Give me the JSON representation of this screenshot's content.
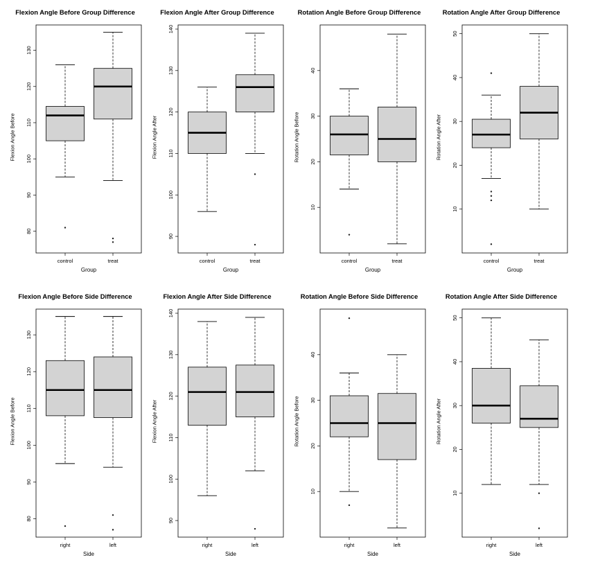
{
  "chart_data": [
    {
      "type": "box",
      "title": "Flexion Angle Before Group Difference",
      "xlabel": "Group",
      "ylabel": "Flexion Angle Before",
      "ylim": [
        74,
        137
      ],
      "yticks": [
        80,
        90,
        100,
        110,
        120,
        130
      ],
      "categories": [
        "control",
        "treat"
      ],
      "boxes": [
        {
          "whisker_low": 95,
          "q1": 105,
          "median": 112,
          "q3": 114.5,
          "whisker_high": 126,
          "outliers": [
            81
          ]
        },
        {
          "whisker_low": 94,
          "q1": 111,
          "median": 120,
          "q3": 125,
          "whisker_high": 135,
          "outliers": [
            78,
            77
          ]
        }
      ]
    },
    {
      "type": "box",
      "title": "Flexion Angle After Group Difference",
      "xlabel": "Group",
      "ylabel": "Flexion Angle After",
      "ylim": [
        86,
        141
      ],
      "yticks": [
        90,
        100,
        110,
        120,
        130,
        140
      ],
      "categories": [
        "control",
        "treat"
      ],
      "boxes": [
        {
          "whisker_low": 96,
          "q1": 110,
          "median": 115,
          "q3": 120,
          "whisker_high": 126,
          "outliers": []
        },
        {
          "whisker_low": 110,
          "q1": 120,
          "median": 126,
          "q3": 129,
          "whisker_high": 139,
          "outliers": [
            105,
            88
          ]
        }
      ]
    },
    {
      "type": "box",
      "title": "Rotation Angle Before Group Difference",
      "xlabel": "Group",
      "ylabel": "Rotation Angle Before",
      "ylim": [
        0,
        50
      ],
      "yticks": [
        10,
        20,
        30,
        40
      ],
      "categories": [
        "control",
        "treat"
      ],
      "boxes": [
        {
          "whisker_low": 14,
          "q1": 21.5,
          "median": 26,
          "q3": 30,
          "whisker_high": 36,
          "outliers": [
            4
          ]
        },
        {
          "whisker_low": 2,
          "q1": 20,
          "median": 25,
          "q3": 32,
          "whisker_high": 48,
          "outliers": []
        }
      ]
    },
    {
      "type": "box",
      "title": "Rotation Angle After Group Difference",
      "xlabel": "Group",
      "ylabel": "Rotation Angle After",
      "ylim": [
        0,
        52
      ],
      "yticks": [
        10,
        20,
        30,
        40,
        50
      ],
      "categories": [
        "control",
        "treat"
      ],
      "boxes": [
        {
          "whisker_low": 17,
          "q1": 24,
          "median": 27,
          "q3": 30.5,
          "whisker_high": 36,
          "outliers": [
            41,
            14,
            13,
            12,
            2
          ]
        },
        {
          "whisker_low": 10,
          "q1": 26,
          "median": 32,
          "q3": 38,
          "whisker_high": 50,
          "outliers": []
        }
      ]
    },
    {
      "type": "box",
      "title": "Flexion Angle Before Side Difference",
      "xlabel": "Side",
      "ylabel": "Flexion Angle Before",
      "ylim": [
        75,
        137
      ],
      "yticks": [
        80,
        90,
        100,
        110,
        120,
        130
      ],
      "categories": [
        "right",
        "left"
      ],
      "boxes": [
        {
          "whisker_low": 95,
          "q1": 108,
          "median": 115,
          "q3": 123,
          "whisker_high": 135,
          "outliers": [
            78
          ]
        },
        {
          "whisker_low": 94,
          "q1": 107.5,
          "median": 115,
          "q3": 124,
          "whisker_high": 135,
          "outliers": [
            81,
            77
          ]
        }
      ]
    },
    {
      "type": "box",
      "title": "Flexion Angle After Side Difference",
      "xlabel": "Side",
      "ylabel": "Flexion Angle After",
      "ylim": [
        86,
        141
      ],
      "yticks": [
        90,
        100,
        110,
        120,
        130,
        140
      ],
      "categories": [
        "right",
        "left"
      ],
      "boxes": [
        {
          "whisker_low": 96,
          "q1": 113,
          "median": 121,
          "q3": 127,
          "whisker_high": 138,
          "outliers": []
        },
        {
          "whisker_low": 102,
          "q1": 115,
          "median": 121,
          "q3": 127.5,
          "whisker_high": 139,
          "outliers": [
            88
          ]
        }
      ]
    },
    {
      "type": "box",
      "title": "Rotation Angle Before Side Difference",
      "xlabel": "Side",
      "ylabel": "Rotation Angle Before",
      "ylim": [
        0,
        50
      ],
      "yticks": [
        10,
        20,
        30,
        40
      ],
      "categories": [
        "right",
        "left"
      ],
      "boxes": [
        {
          "whisker_low": 10,
          "q1": 22,
          "median": 25,
          "q3": 31,
          "whisker_high": 36,
          "outliers": [
            48,
            7
          ]
        },
        {
          "whisker_low": 2,
          "q1": 17,
          "median": 25,
          "q3": 31.5,
          "whisker_high": 40,
          "outliers": []
        }
      ]
    },
    {
      "type": "box",
      "title": "Rotation Angle After Side Difference",
      "xlabel": "Side",
      "ylabel": "Rotation Angle After",
      "ylim": [
        0,
        52
      ],
      "yticks": [
        10,
        20,
        30,
        40,
        50
      ],
      "categories": [
        "right",
        "left"
      ],
      "boxes": [
        {
          "whisker_low": 12,
          "q1": 26,
          "median": 30,
          "q3": 38.5,
          "whisker_high": 50,
          "outliers": []
        },
        {
          "whisker_low": 12,
          "q1": 25,
          "median": 27,
          "q3": 34.5,
          "whisker_high": 45,
          "outliers": [
            10,
            2
          ]
        }
      ]
    }
  ],
  "colors": {
    "box_fill": "#d3d3d3",
    "stroke": "#000000",
    "background": "#ffffff"
  }
}
